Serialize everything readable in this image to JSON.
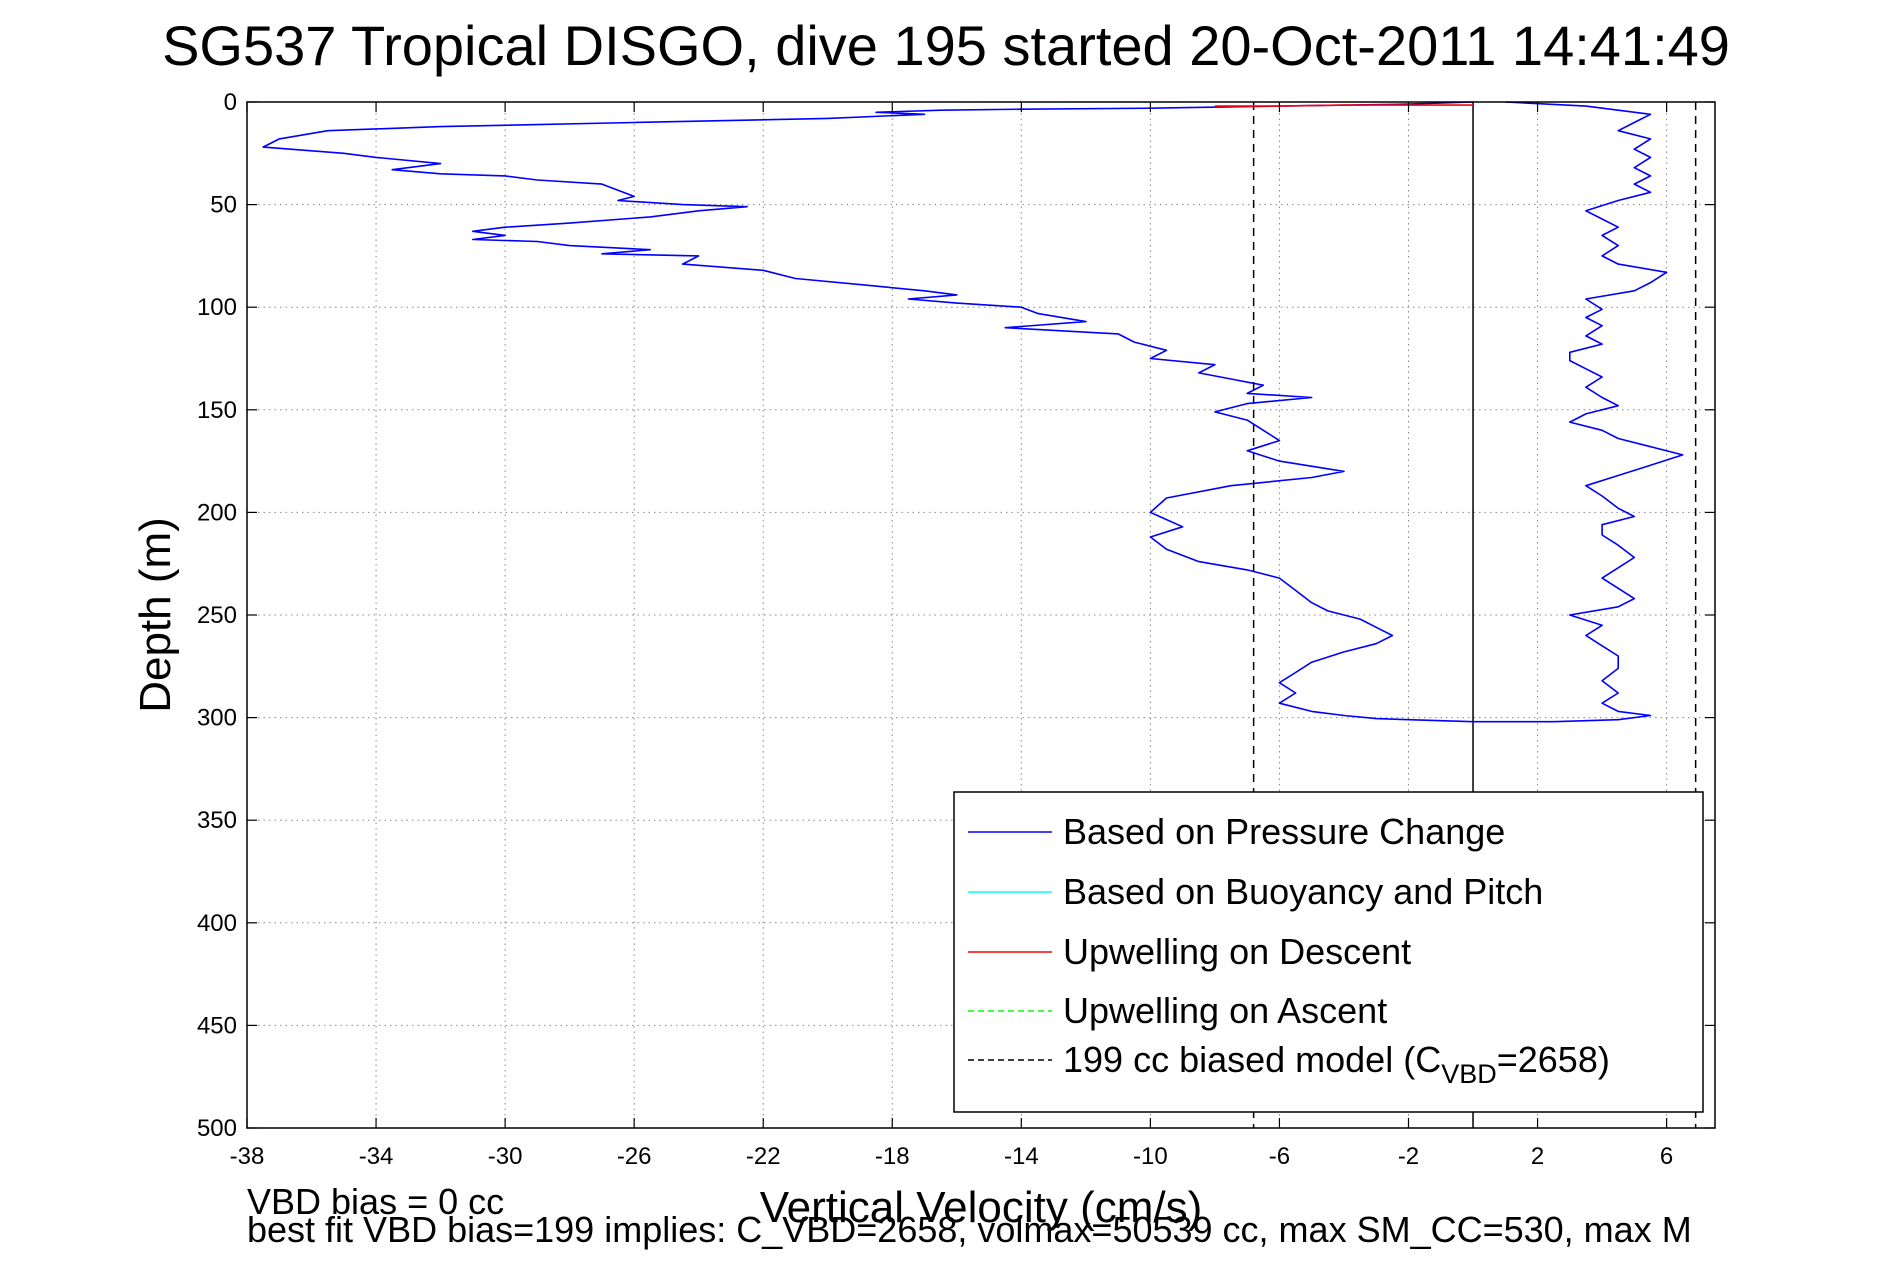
{
  "chart_data": {
    "type": "line",
    "title": "SG537 Tropical DISGO, dive 195 started 20-Oct-2011 14:41:49",
    "xlabel": "Vertical Velocity (cm/s)",
    "ylabel": "Depth (m)",
    "xlim": [
      -38,
      7.5
    ],
    "ylim": [
      0,
      500
    ],
    "y_reversed": true,
    "grid": true,
    "x_ticks": [
      -38,
      -34,
      -30,
      -26,
      -22,
      -18,
      -14,
      -10,
      -6,
      -2,
      2,
      6
    ],
    "x_tick_labels": [
      "-38",
      "-34",
      "-30",
      "-26",
      "-22",
      "-18",
      "-14",
      "-10",
      "-6",
      "-2",
      "2",
      "6"
    ],
    "y_ticks": [
      0,
      50,
      100,
      150,
      200,
      250,
      300,
      350,
      400,
      450,
      500
    ],
    "y_tick_labels": [
      "0",
      "50",
      "100",
      "150",
      "200",
      "250",
      "300",
      "350",
      "400",
      "450",
      "500"
    ],
    "legend_position": "bottom-right",
    "legend": [
      {
        "label": "Based on Pressure Change",
        "color": "#0000ff",
        "dash": false
      },
      {
        "label": "Based on Buoyancy and Pitch",
        "color": "#00ffff",
        "dash": false
      },
      {
        "label": "Upwelling on Descent",
        "color": "#ff0000",
        "dash": false
      },
      {
        "label": "Upwelling on Ascent",
        "color": "#00ff00",
        "dash": true
      },
      {
        "label_main": "199 cc biased model (C",
        "label_sub": "VBD",
        "label_tail": "=2658)",
        "color": "#000000",
        "dash": true
      }
    ],
    "series": [
      {
        "name": "Based on Pressure Change",
        "role": "descent",
        "color": "#0000ff",
        "points": [
          [
            0.0,
            0
          ],
          [
            -2.0,
            1
          ],
          [
            -6.0,
            2
          ],
          [
            -10.0,
            3
          ],
          [
            -14.0,
            3.5
          ],
          [
            -16.5,
            4
          ],
          [
            -18.5,
            5
          ],
          [
            -17.0,
            6
          ],
          [
            -20.0,
            8
          ],
          [
            -26.0,
            10
          ],
          [
            -32.0,
            12
          ],
          [
            -35.5,
            14
          ],
          [
            -37.0,
            18
          ],
          [
            -37.5,
            22
          ],
          [
            -35.0,
            25
          ],
          [
            -34.0,
            27
          ],
          [
            -32.0,
            30
          ],
          [
            -33.5,
            33
          ],
          [
            -32.0,
            35
          ],
          [
            -30.0,
            36
          ],
          [
            -29.0,
            38
          ],
          [
            -27.0,
            40
          ],
          [
            -26.5,
            43
          ],
          [
            -26.0,
            46
          ],
          [
            -26.5,
            48
          ],
          [
            -24.5,
            50
          ],
          [
            -22.5,
            51
          ],
          [
            -24.0,
            53
          ],
          [
            -25.5,
            56
          ],
          [
            -28.0,
            59
          ],
          [
            -30.0,
            61
          ],
          [
            -31.0,
            63
          ],
          [
            -30.0,
            65
          ],
          [
            -31.0,
            67
          ],
          [
            -29.0,
            68
          ],
          [
            -28.0,
            70
          ],
          [
            -25.5,
            72
          ],
          [
            -27.0,
            74
          ],
          [
            -24.0,
            75
          ],
          [
            -24.5,
            79
          ],
          [
            -22.0,
            82
          ],
          [
            -21.0,
            86
          ],
          [
            -19.0,
            89
          ],
          [
            -17.0,
            92
          ],
          [
            -16.0,
            94
          ],
          [
            -17.5,
            96
          ],
          [
            -16.0,
            98
          ],
          [
            -14.0,
            100
          ],
          [
            -13.5,
            103
          ],
          [
            -12.0,
            107
          ],
          [
            -14.5,
            110
          ],
          [
            -11.0,
            113
          ],
          [
            -10.5,
            117
          ],
          [
            -9.5,
            121
          ],
          [
            -10.0,
            125
          ],
          [
            -8.0,
            128
          ],
          [
            -8.5,
            132
          ],
          [
            -7.5,
            135
          ],
          [
            -6.5,
            138
          ],
          [
            -7.0,
            142
          ],
          [
            -5.0,
            144
          ],
          [
            -7.0,
            147
          ],
          [
            -8.0,
            151
          ],
          [
            -7.0,
            155
          ],
          [
            -6.5,
            160
          ],
          [
            -6.0,
            165
          ],
          [
            -7.0,
            170
          ],
          [
            -6.0,
            175
          ],
          [
            -4.0,
            180
          ],
          [
            -5.0,
            183
          ],
          [
            -7.5,
            187
          ],
          [
            -9.5,
            193
          ],
          [
            -10.0,
            200
          ],
          [
            -9.0,
            207
          ],
          [
            -10.0,
            212
          ],
          [
            -9.5,
            218
          ],
          [
            -8.5,
            224
          ],
          [
            -7.0,
            228
          ],
          [
            -6.0,
            232
          ],
          [
            -5.5,
            238
          ],
          [
            -5.0,
            244
          ],
          [
            -4.5,
            248
          ],
          [
            -3.5,
            252
          ],
          [
            -3.0,
            256
          ],
          [
            -2.5,
            260
          ],
          [
            -3.0,
            264
          ],
          [
            -4.0,
            268
          ],
          [
            -5.0,
            273
          ],
          [
            -5.5,
            278
          ],
          [
            -6.0,
            283
          ],
          [
            -5.5,
            288
          ],
          [
            -6.0,
            293
          ],
          [
            -5.0,
            297
          ],
          [
            -4.0,
            299
          ],
          [
            -3.0,
            300.5
          ],
          [
            -1.0,
            301.5
          ],
          [
            0.0,
            302
          ]
        ]
      },
      {
        "name": "Based on Pressure Change",
        "role": "ascent",
        "color": "#0000ff",
        "points": [
          [
            0.0,
            302
          ],
          [
            2.5,
            302
          ],
          [
            4.5,
            301
          ],
          [
            5.5,
            299
          ],
          [
            4.5,
            297
          ],
          [
            4.0,
            293
          ],
          [
            4.5,
            288
          ],
          [
            4.0,
            282
          ],
          [
            4.5,
            276
          ],
          [
            4.5,
            270
          ],
          [
            4.0,
            265
          ],
          [
            3.5,
            260
          ],
          [
            4.0,
            255
          ],
          [
            3.0,
            250
          ],
          [
            4.5,
            246
          ],
          [
            5.0,
            242
          ],
          [
            4.5,
            237
          ],
          [
            4.0,
            232
          ],
          [
            4.5,
            227
          ],
          [
            5.0,
            222
          ],
          [
            4.5,
            216
          ],
          [
            4.0,
            211
          ],
          [
            4.0,
            206
          ],
          [
            5.0,
            202
          ],
          [
            4.5,
            198
          ],
          [
            4.0,
            192
          ],
          [
            3.5,
            187
          ],
          [
            4.5,
            182
          ],
          [
            5.5,
            177
          ],
          [
            6.5,
            172
          ],
          [
            5.5,
            168
          ],
          [
            4.5,
            164
          ],
          [
            4.0,
            160
          ],
          [
            3.0,
            156
          ],
          [
            3.5,
            152
          ],
          [
            4.5,
            148
          ],
          [
            4.0,
            144
          ],
          [
            3.5,
            139
          ],
          [
            4.0,
            134
          ],
          [
            3.5,
            130
          ],
          [
            3.0,
            126
          ],
          [
            3.0,
            122
          ],
          [
            4.0,
            118
          ],
          [
            3.5,
            114
          ],
          [
            4.0,
            109
          ],
          [
            3.5,
            105
          ],
          [
            4.0,
            101
          ],
          [
            3.5,
            96
          ],
          [
            5.0,
            92
          ],
          [
            5.5,
            88
          ],
          [
            6.0,
            83
          ],
          [
            4.5,
            79
          ],
          [
            4.0,
            75
          ],
          [
            4.5,
            70
          ],
          [
            4.0,
            65
          ],
          [
            4.5,
            61
          ],
          [
            4.0,
            57
          ],
          [
            3.5,
            53
          ],
          [
            4.5,
            48
          ],
          [
            5.5,
            44
          ],
          [
            5.0,
            40
          ],
          [
            5.5,
            36
          ],
          [
            5.0,
            32
          ],
          [
            5.5,
            27
          ],
          [
            5.0,
            23
          ],
          [
            5.5,
            18
          ],
          [
            4.5,
            14
          ],
          [
            5.0,
            10
          ],
          [
            5.5,
            6
          ],
          [
            3.5,
            2
          ],
          [
            1.0,
            0
          ]
        ]
      },
      {
        "name": "Upwelling on Descent",
        "color": "#ff0000",
        "points": [
          [
            -8.0,
            2
          ],
          [
            -6.0,
            2
          ],
          [
            -4.0,
            1.5
          ],
          [
            -2.0,
            1.5
          ],
          [
            0.0,
            1.5
          ]
        ]
      }
    ],
    "reference_lines": [
      {
        "x": -6.8,
        "style": "dashed",
        "color": "#000000"
      },
      {
        "x": 0.0,
        "style": "solid",
        "color": "#000000"
      },
      {
        "x": 6.9,
        "style": "dashed",
        "color": "#000000"
      }
    ],
    "annotations": [
      "VBD bias = 0 cc",
      "best fit VBD bias=199 implies: C_VBD=2658, volmax=50539 cc, max SM_CC=530, max M"
    ]
  }
}
